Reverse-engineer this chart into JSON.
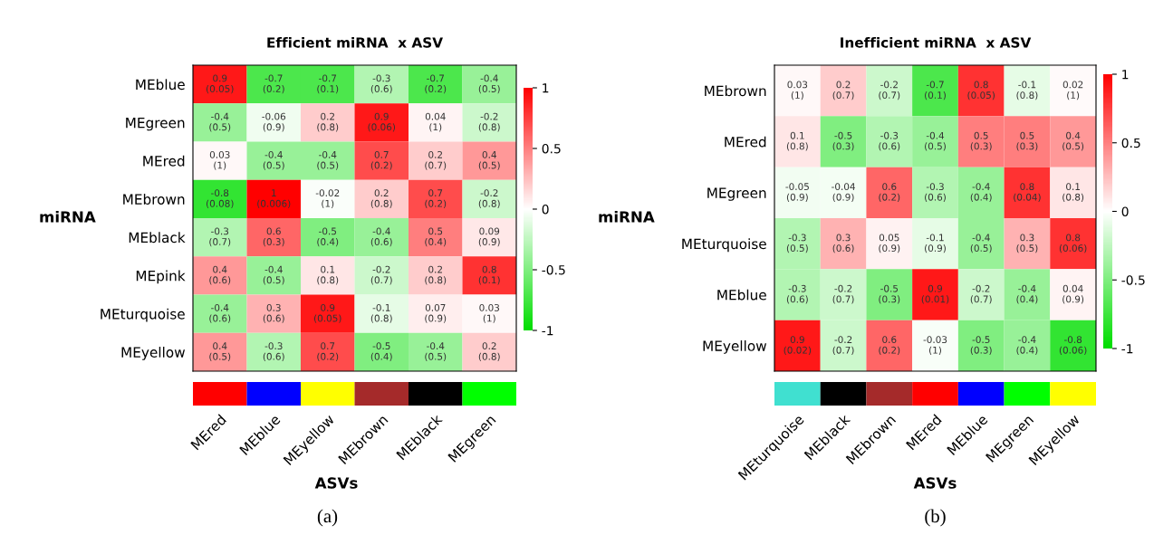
{
  "chart_data": [
    {
      "type": "heatmap",
      "title": "Efficient miRNA  x ASV",
      "xlabel": "ASVs",
      "ylabel": "miRNA",
      "categories": [
        "MEred",
        "MEblue",
        "MEyellow",
        "MEbrown",
        "MEblack",
        "MEgreen"
      ],
      "colors": [
        "#ff0000",
        "#0000ff",
        "#ffff00",
        "#a52a2a",
        "#000000",
        "#00ff00"
      ],
      "y_categories": [
        "MEblue",
        "MEgreen",
        "MEred",
        "MEbrown",
        "MEblack",
        "MEpink",
        "MEturquoise",
        "MEyellow"
      ],
      "cells": [
        [
          0.9,
          -0.7,
          -0.7,
          -0.3,
          -0.7,
          -0.4
        ],
        [
          -0.4,
          -0.06,
          0.2,
          0.9,
          0.04,
          -0.2
        ],
        [
          0.03,
          -0.4,
          -0.4,
          0.7,
          0.2,
          0.4
        ],
        [
          -0.8,
          1,
          -0.02,
          0.2,
          0.7,
          -0.2
        ],
        [
          -0.3,
          0.6,
          -0.5,
          -0.4,
          0.5,
          0.09
        ],
        [
          0.4,
          -0.4,
          0.1,
          -0.2,
          0.2,
          0.8
        ],
        [
          -0.4,
          0.3,
          0.9,
          -0.1,
          0.07,
          0.03
        ],
        [
          0.4,
          -0.3,
          0.7,
          -0.5,
          -0.4,
          0.2
        ]
      ],
      "cell_labels": [
        [
          "0.9\n(0.05)",
          "-0.7\n(0.2)",
          "-0.7\n(0.1)",
          "-0.3\n(0.6)",
          "-0.7\n(0.2)",
          "-0.4\n(0.5)"
        ],
        [
          "-0.4\n(0.5)",
          "-0.06\n(0.9)",
          "0.2\n(0.8)",
          "0.9\n(0.06)",
          "0.04\n(1)",
          "-0.2\n(0.8)"
        ],
        [
          "0.03\n(1)",
          "-0.4\n(0.5)",
          "-0.4\n(0.5)",
          "0.7\n(0.2)",
          "0.2\n(0.7)",
          "0.4\n(0.5)"
        ],
        [
          "-0.8\n(0.08)",
          "1\n(0.006)",
          "-0.02\n(1)",
          "0.2\n(0.8)",
          "0.7\n(0.2)",
          "-0.2\n(0.8)"
        ],
        [
          "-0.3\n(0.7)",
          "0.6\n(0.3)",
          "-0.5\n(0.4)",
          "-0.4\n(0.6)",
          "0.5\n(0.4)",
          "0.09\n(0.9)"
        ],
        [
          "0.4\n(0.6)",
          "-0.4\n(0.5)",
          "0.1\n(0.8)",
          "-0.2\n(0.7)",
          "0.2\n(0.8)",
          "0.8\n(0.1)"
        ],
        [
          "-0.4\n(0.6)",
          "0.3\n(0.6)",
          "0.9\n(0.05)",
          "-0.1\n(0.8)",
          "0.07\n(0.9)",
          "0.03\n(1)"
        ],
        [
          "0.4\n(0.5)",
          "-0.3\n(0.6)",
          "0.7\n(0.2)",
          "-0.5\n(0.4)",
          "-0.4\n(0.5)",
          "0.2\n(0.8)"
        ]
      ],
      "clim": [
        -1,
        1
      ],
      "cticks": [
        -1,
        -0.5,
        0,
        0.5,
        1
      ],
      "annotations": [
        "(a)"
      ]
    },
    {
      "type": "heatmap",
      "title": "Inefficient miRNA  x ASV",
      "xlabel": "ASVs",
      "ylabel": "miRNA",
      "categories": [
        "MEturquoise",
        "MEblack",
        "MEbrown",
        "MEred",
        "MEblue",
        "MEgreen",
        "MEyellow"
      ],
      "colors": [
        "#40e0d0",
        "#000000",
        "#a52a2a",
        "#ff0000",
        "#0000ff",
        "#00ff00",
        "#ffff00"
      ],
      "y_categories": [
        "MEbrown",
        "MEred",
        "MEgreen",
        "MEturquoise",
        "MEblue",
        "MEyellow"
      ],
      "cells": [
        [
          0.03,
          0.2,
          -0.2,
          -0.7,
          0.8,
          -0.1,
          0.02
        ],
        [
          0.1,
          -0.5,
          -0.3,
          -0.4,
          0.5,
          0.5,
          0.4
        ],
        [
          -0.05,
          -0.04,
          0.6,
          -0.3,
          -0.4,
          0.8,
          0.1
        ],
        [
          -0.3,
          0.3,
          0.05,
          -0.1,
          -0.4,
          0.3,
          0.8
        ],
        [
          -0.3,
          -0.2,
          -0.5,
          0.9,
          -0.2,
          -0.4,
          0.04
        ],
        [
          0.9,
          -0.2,
          0.6,
          -0.03,
          -0.5,
          -0.4,
          -0.8
        ]
      ],
      "cell_labels": [
        [
          "0.03\n(1)",
          "0.2\n(0.7)",
          "-0.2\n(0.7)",
          "-0.7\n(0.1)",
          "0.8\n(0.05)",
          "-0.1\n(0.8)",
          "0.02\n(1)"
        ],
        [
          "0.1\n(0.8)",
          "-0.5\n(0.3)",
          "-0.3\n(0.6)",
          "-0.4\n(0.5)",
          "0.5\n(0.3)",
          "0.5\n(0.3)",
          "0.4\n(0.5)"
        ],
        [
          "-0.05\n(0.9)",
          "-0.04\n(0.9)",
          "0.6\n(0.2)",
          "-0.3\n(0.6)",
          "-0.4\n(0.4)",
          "0.8\n(0.04)",
          "0.1\n(0.8)"
        ],
        [
          "-0.3\n(0.5)",
          "0.3\n(0.6)",
          "0.05\n(0.9)",
          "-0.1\n(0.9)",
          "-0.4\n(0.5)",
          "0.3\n(0.5)",
          "0.8\n(0.06)"
        ],
        [
          "-0.3\n(0.6)",
          "-0.2\n(0.7)",
          "-0.5\n(0.3)",
          "0.9\n(0.01)",
          "-0.2\n(0.7)",
          "-0.4\n(0.4)",
          "0.04\n(0.9)"
        ],
        [
          "0.9\n(0.02)",
          "-0.2\n(0.7)",
          "0.6\n(0.2)",
          "-0.03\n(1)",
          "-0.5\n(0.3)",
          "-0.4\n(0.4)",
          "-0.8\n(0.06)"
        ]
      ],
      "clim": [
        -1,
        1
      ],
      "cticks": [
        -1,
        -0.5,
        0,
        0.5,
        1
      ],
      "annotations": [
        "(b)"
      ]
    }
  ]
}
